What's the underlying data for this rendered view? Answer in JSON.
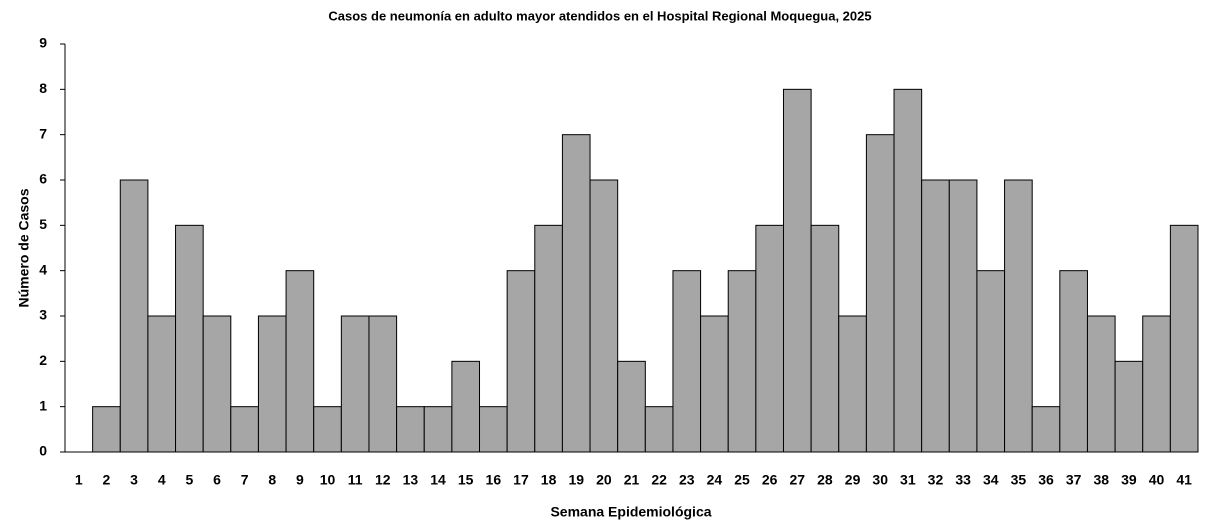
{
  "chart_data": {
    "type": "bar",
    "title": "Casos de neumonía en adulto mayor atendidos en el Hospital Regional Moquegua, 2025",
    "x_label": "Semana Epidemiológica",
    "y_label": "Número de Casos",
    "categories": [
      "1",
      "2",
      "3",
      "4",
      "5",
      "6",
      "7",
      "8",
      "9",
      "10",
      "11",
      "12",
      "13",
      "14",
      "15",
      "16",
      "17",
      "18",
      "19",
      "20",
      "21",
      "22",
      "23",
      "24",
      "25",
      "26",
      "27",
      "28",
      "29",
      "30",
      "31",
      "32",
      "33",
      "34",
      "35",
      "36",
      "37",
      "38",
      "39",
      "40",
      "41"
    ],
    "values": [
      0,
      1,
      6,
      3,
      5,
      3,
      1,
      3,
      4,
      1,
      3,
      3,
      1,
      1,
      2,
      1,
      4,
      5,
      7,
      6,
      2,
      1,
      4,
      3,
      4,
      5,
      8,
      5,
      3,
      7,
      8,
      6,
      6,
      4,
      6,
      1,
      4,
      3,
      2,
      3,
      5
    ],
    "color": "#a6a6a6",
    "ylim": [
      0,
      9
    ],
    "yticks": [
      0,
      1,
      2,
      3,
      4,
      5,
      6,
      7,
      8,
      9
    ],
    "grid": false
  }
}
